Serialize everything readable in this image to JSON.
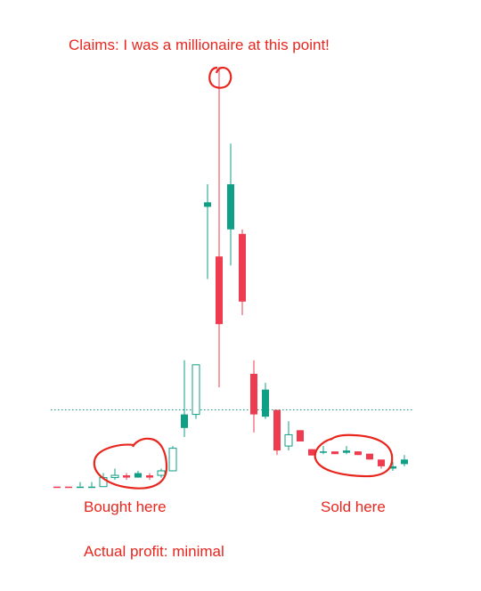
{
  "annotations": {
    "claim": "Claims: I was a millionaire at this point!",
    "bought": "Bought here",
    "sold": "Sold here",
    "profit": "Actual profit: minimal"
  },
  "colors": {
    "up": "#0e9f84",
    "down": "#ef3b4f",
    "annotation": "#e8261e",
    "reference_line": "#0e9f84"
  },
  "chart_data": {
    "type": "candlestick",
    "x_axis_shown": false,
    "y_axis_shown": false,
    "grid": false,
    "ylim": [
      0,
      1
    ],
    "reference_line": 0.21,
    "candles": [
      {
        "open": 0.04,
        "high": 0.04,
        "low": 0.04,
        "close": 0.04,
        "style": "down"
      },
      {
        "open": 0.04,
        "high": 0.04,
        "low": 0.04,
        "close": 0.04,
        "style": "down"
      },
      {
        "open": 0.04,
        "high": 0.05,
        "low": 0.04,
        "close": 0.04,
        "style": "up"
      },
      {
        "open": 0.04,
        "high": 0.05,
        "low": 0.04,
        "close": 0.04,
        "style": "up"
      },
      {
        "open": 0.04,
        "high": 0.07,
        "low": 0.04,
        "close": 0.06,
        "style": "up-hollow"
      },
      {
        "open": 0.06,
        "high": 0.08,
        "low": 0.055,
        "close": 0.065,
        "style": "up-hollow"
      },
      {
        "open": 0.065,
        "high": 0.07,
        "low": 0.055,
        "close": 0.06,
        "style": "down"
      },
      {
        "open": 0.06,
        "high": 0.075,
        "low": 0.06,
        "close": 0.07,
        "style": "up"
      },
      {
        "open": 0.065,
        "high": 0.07,
        "low": 0.055,
        "close": 0.06,
        "style": "down"
      },
      {
        "open": 0.065,
        "high": 0.08,
        "low": 0.06,
        "close": 0.075,
        "style": "up-hollow"
      },
      {
        "open": 0.075,
        "high": 0.13,
        "low": 0.075,
        "close": 0.125,
        "style": "up-hollow"
      },
      {
        "open": 0.17,
        "high": 0.32,
        "low": 0.15,
        "close": 0.2,
        "style": "up"
      },
      {
        "open": 0.2,
        "high": 0.31,
        "low": 0.19,
        "close": 0.31,
        "style": "up-hollow"
      },
      {
        "open": 0.66,
        "high": 0.71,
        "low": 0.5,
        "close": 0.67,
        "style": "up"
      },
      {
        "open": 0.55,
        "high": 0.97,
        "low": 0.26,
        "close": 0.4,
        "style": "down"
      },
      {
        "open": 0.61,
        "high": 0.8,
        "low": 0.53,
        "close": 0.71,
        "style": "up"
      },
      {
        "open": 0.6,
        "high": 0.61,
        "low": 0.42,
        "close": 0.45,
        "style": "down"
      },
      {
        "open": 0.29,
        "high": 0.32,
        "low": 0.16,
        "close": 0.2,
        "style": "down"
      },
      {
        "open": 0.195,
        "high": 0.27,
        "low": 0.19,
        "close": 0.255,
        "style": "up"
      },
      {
        "open": 0.21,
        "high": 0.21,
        "low": 0.11,
        "close": 0.12,
        "style": "down"
      },
      {
        "open": 0.13,
        "high": 0.185,
        "low": 0.12,
        "close": 0.155,
        "style": "up-hollow"
      },
      {
        "open": 0.165,
        "high": 0.165,
        "low": 0.14,
        "close": 0.14,
        "style": "down"
      },
      {
        "open": 0.123,
        "high": 0.123,
        "low": 0.109,
        "close": 0.109,
        "style": "down"
      },
      {
        "open": 0.115,
        "high": 0.13,
        "low": 0.112,
        "close": 0.118,
        "style": "up"
      },
      {
        "open": 0.118,
        "high": 0.118,
        "low": 0.112,
        "close": 0.112,
        "style": "down"
      },
      {
        "open": 0.115,
        "high": 0.13,
        "low": 0.112,
        "close": 0.12,
        "style": "up"
      },
      {
        "open": 0.118,
        "high": 0.118,
        "low": 0.11,
        "close": 0.11,
        "style": "down"
      },
      {
        "open": 0.113,
        "high": 0.113,
        "low": 0.1,
        "close": 0.1,
        "style": "down"
      },
      {
        "open": 0.1,
        "high": 0.1,
        "low": 0.08,
        "close": 0.085,
        "style": "down"
      },
      {
        "open": 0.08,
        "high": 0.095,
        "low": 0.075,
        "close": 0.085,
        "style": "up"
      },
      {
        "open": 0.09,
        "high": 0.11,
        "low": 0.085,
        "close": 0.1,
        "style": "up"
      }
    ]
  }
}
